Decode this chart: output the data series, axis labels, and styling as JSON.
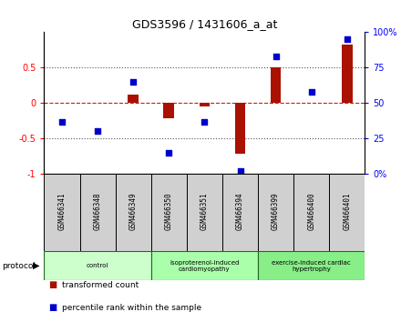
{
  "title": "GDS3596 / 1431606_a_at",
  "samples": [
    "GSM466341",
    "GSM466348",
    "GSM466349",
    "GSM466350",
    "GSM466351",
    "GSM466394",
    "GSM466399",
    "GSM466400",
    "GSM466401"
  ],
  "transformed_count": [
    0.0,
    0.0,
    0.12,
    -0.22,
    -0.05,
    -0.72,
    0.5,
    0.0,
    0.82
  ],
  "percentile_rank": [
    37,
    30,
    65,
    15,
    37,
    2,
    83,
    58,
    95
  ],
  "groups": [
    {
      "label": "control",
      "start": 0,
      "end": 3,
      "color": "#ccffcc"
    },
    {
      "label": "isoproterenol-induced\ncardiomyopathy",
      "start": 3,
      "end": 6,
      "color": "#aaffaa"
    },
    {
      "label": "exercise-induced cardiac\nhypertrophy",
      "start": 6,
      "end": 9,
      "color": "#88ee88"
    }
  ],
  "bar_color": "#aa1100",
  "dot_color": "#0000cc",
  "zero_line_color": "#cc2200",
  "dotted_line_color": "#555555",
  "ylim_left": [
    -1,
    1
  ],
  "ylim_right": [
    0,
    100
  ],
  "yticks_left": [
    -1,
    -0.5,
    0,
    0.5
  ],
  "ytick_labels_left": [
    "-1",
    "-0.5",
    "0",
    "0.5"
  ],
  "yticks_right": [
    0,
    25,
    50,
    75,
    100
  ],
  "ytick_labels_right": [
    "0%",
    "25",
    "50",
    "75",
    "100%"
  ],
  "hlines": [
    -0.5,
    0.5
  ],
  "label_fontsize": 5.5,
  "group_fontsize": 5.0,
  "title_fontsize": 9
}
